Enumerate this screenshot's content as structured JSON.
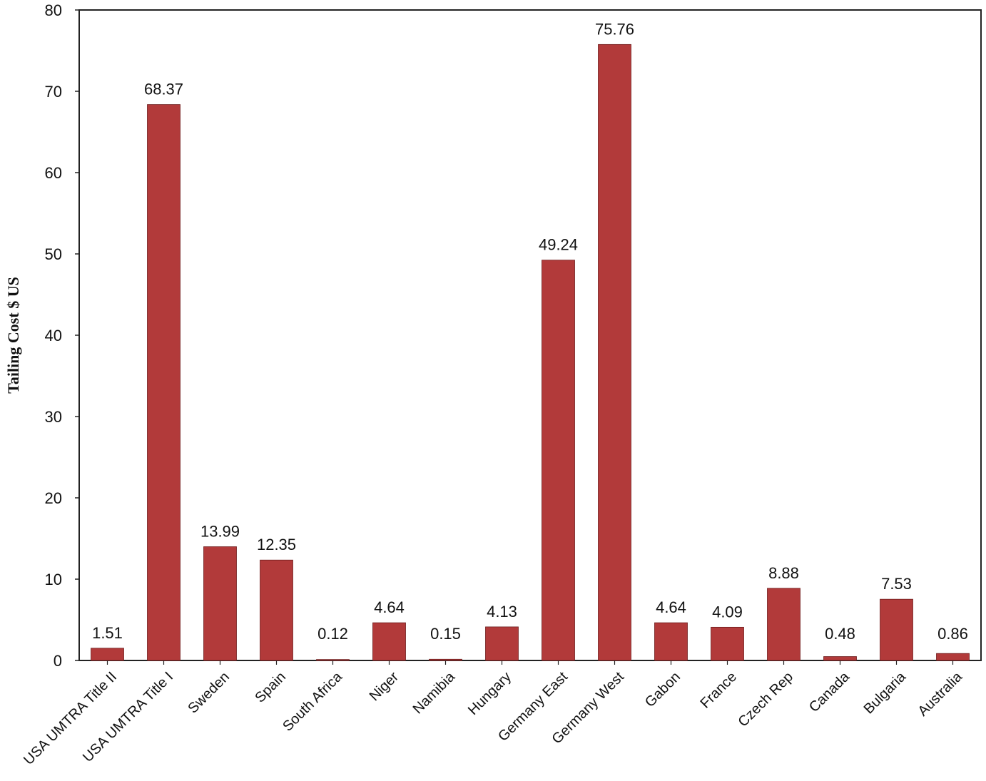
{
  "chart_data": {
    "type": "bar",
    "title": "",
    "xlabel": "",
    "ylabel": "Tailing Cost $ US",
    "ylim": [
      0,
      80
    ],
    "yticks": [
      0,
      10,
      20,
      30,
      40,
      50,
      60,
      70,
      80
    ],
    "grid": false,
    "legend": "none",
    "bar_color": "#b23a3a",
    "categories": [
      "USA UMTRA Title II",
      "USA UMTRA Title I",
      "Sweden",
      "Spain",
      "South Africa",
      "Niger",
      "Namibia",
      "Hungary",
      "Germany East",
      "Germany West",
      "Gabon",
      "France",
      "Czech Rep",
      "Canada",
      "Bulgaria",
      "Australia"
    ],
    "values": [
      1.51,
      68.37,
      13.99,
      12.35,
      0.12,
      4.64,
      0.15,
      4.13,
      49.24,
      75.76,
      4.64,
      4.09,
      8.88,
      0.48,
      7.53,
      0.86
    ],
    "data_labels": [
      "1.51",
      "68.37",
      "13.99",
      "12.35",
      "0.12",
      "4.64",
      "0.15",
      "4.13",
      "49.24",
      "75.76",
      "4.64",
      "4.09",
      "8.88",
      "0.48",
      "7.53",
      "0.86"
    ]
  }
}
